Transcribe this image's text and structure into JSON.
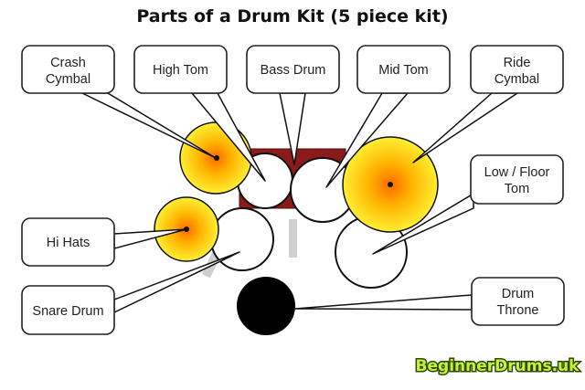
{
  "title": "Parts of a Drum Kit (5 piece kit)",
  "labels": {
    "crash_cymbal": [
      "Crash",
      "Cymbal"
    ],
    "high_tom": [
      "High Tom"
    ],
    "bass_drum": [
      "Bass Drum"
    ],
    "mid_tom": [
      "Mid Tom"
    ],
    "ride_cymbal": [
      "Ride",
      "Cymbal"
    ],
    "low_floor_tom": [
      "Low / Floor",
      "Tom"
    ],
    "hi_hats": [
      "Hi Hats"
    ],
    "snare_drum": [
      "Snare Drum"
    ],
    "drum_throne": [
      "Drum",
      "Throne"
    ]
  },
  "logo": "BeginnerDrums.uk",
  "colors": {
    "bass_drum_shell": "#8b1a1a",
    "cymbal_center": "#ff6a00",
    "cymbal_mid": "#ffb300",
    "cymbal_edge": "#ffef33",
    "throne": "#000000",
    "stand": "#cfcfcf",
    "logo_fill": "#c8f03a",
    "logo_outline": "#2a4a00"
  }
}
